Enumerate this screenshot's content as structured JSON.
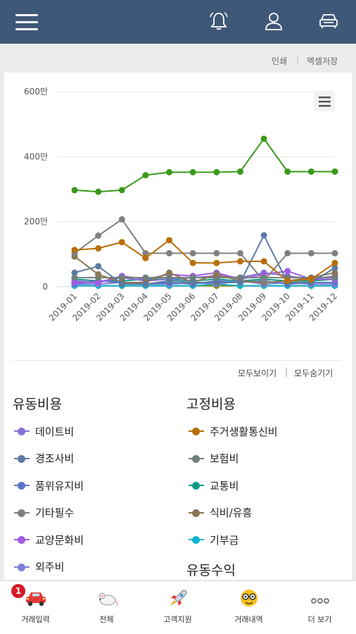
{
  "toolbar": {
    "print_label": "인쇄",
    "excel_label": "엑셀저장"
  },
  "chart_data": {
    "type": "line",
    "categories": [
      "2019-01",
      "2019-02",
      "2019-03",
      "2019-04",
      "2019-05",
      "2019-06",
      "2019-07",
      "2019-08",
      "2019-09",
      "2019-10",
      "2019-11",
      "2019-12"
    ],
    "y_ticks": [
      {
        "value": 0,
        "label": "0"
      },
      {
        "value": 200,
        "label": "200만"
      },
      {
        "value": 400,
        "label": "400만"
      },
      {
        "value": 600,
        "label": "600만"
      }
    ],
    "ylim": [
      0,
      600
    ],
    "grid": true,
    "series": [
      {
        "name": "",
        "color": "#3a9a1b",
        "values": [
          297,
          292,
          297,
          343,
          352,
          352,
          352,
          354,
          455,
          354,
          354,
          354
        ]
      },
      {
        "name": "주거생활통신비",
        "color": "#b86e0a",
        "values": [
          113,
          118,
          137,
          88,
          143,
          73,
          73,
          78,
          78,
          18,
          23,
          73
        ]
      },
      {
        "name": "기타필수",
        "color": "#808080",
        "values": [
          103,
          157,
          207,
          103,
          103,
          103,
          103,
          103,
          18,
          103,
          103,
          103
        ]
      },
      {
        "name": "경조사비",
        "color": "#5b7ba0",
        "values": [
          43,
          63,
          8,
          8,
          18,
          13,
          13,
          13,
          158,
          13,
          13,
          58
        ]
      },
      {
        "name": "식비/유흥",
        "color": "#8b7655",
        "values": [
          93,
          38,
          13,
          13,
          43,
          13,
          38,
          18,
          13,
          18,
          28,
          43
        ]
      },
      {
        "name": "보험비",
        "color": "#6f8078",
        "values": [
          28,
          28,
          28,
          28,
          28,
          28,
          28,
          28,
          28,
          28,
          28,
          28
        ]
      },
      {
        "name": "교양문화비",
        "color": "#a05ce6",
        "values": [
          13,
          13,
          33,
          23,
          38,
          33,
          43,
          23,
          38,
          48,
          23,
          23
        ]
      },
      {
        "name": "데이트비",
        "color": "#8a6fd6",
        "values": [
          18,
          13,
          28,
          18,
          23,
          28,
          33,
          28,
          43,
          33,
          23,
          33
        ]
      },
      {
        "name": "품위유지비",
        "color": "#5c74c8",
        "values": [
          8,
          18,
          13,
          8,
          13,
          8,
          18,
          13,
          18,
          8,
          13,
          13
        ]
      },
      {
        "name": "외주비",
        "color": "#7c80d6",
        "values": [
          8,
          8,
          13,
          8,
          8,
          13,
          8,
          18,
          8,
          13,
          8,
          8
        ]
      },
      {
        "name": "교통비",
        "color": "#0f9a87",
        "values": [
          23,
          18,
          18,
          23,
          23,
          18,
          23,
          18,
          23,
          18,
          18,
          23
        ]
      },
      {
        "name": "기부금",
        "color": "#11b4d0",
        "values": [
          3,
          3,
          3,
          3,
          3,
          3,
          8,
          3,
          3,
          3,
          3,
          3
        ]
      },
      {
        "name": "",
        "color": "#8c8a00",
        "values": [
          3,
          3,
          3,
          3,
          3,
          3,
          3,
          3,
          3,
          3,
          3,
          3
        ]
      }
    ]
  },
  "legend_controls": {
    "show_all": "모두보이기",
    "hide_all": "모두숨기기"
  },
  "legend": {
    "variable_expense": {
      "title": "유동비용",
      "items": [
        {
          "label": "데이트비",
          "color": "#8a6fd6"
        },
        {
          "label": "경조사비",
          "color": "#5b7ba0"
        },
        {
          "label": "품위유지비",
          "color": "#5c74c8"
        },
        {
          "label": "기타필수",
          "color": "#808080"
        },
        {
          "label": "교양문화비",
          "color": "#a05ce6"
        },
        {
          "label": "외주비",
          "color": "#7c80d6"
        }
      ]
    },
    "fixed_expense": {
      "title": "고정비용",
      "items": [
        {
          "label": "주거생활통신비",
          "color": "#b86e0a"
        },
        {
          "label": "보험비",
          "color": "#6f8078"
        },
        {
          "label": "교통비",
          "color": "#0f9a87"
        },
        {
          "label": "식비/유흥",
          "color": "#8b7655"
        },
        {
          "label": "기부금",
          "color": "#11b4d0"
        }
      ]
    },
    "variable_income": {
      "title": "유동수익"
    }
  },
  "bottom_nav": {
    "badge": "1",
    "items": [
      {
        "label": "거래입력",
        "icon": "car-icon"
      },
      {
        "label": "전체",
        "icon": "mouse-icon"
      },
      {
        "label": "고객지원",
        "icon": "rocket-icon"
      },
      {
        "label": "거래내역",
        "icon": "nerd-face-icon"
      },
      {
        "label": "더 보기",
        "icon": "more-dots-icon"
      }
    ]
  }
}
